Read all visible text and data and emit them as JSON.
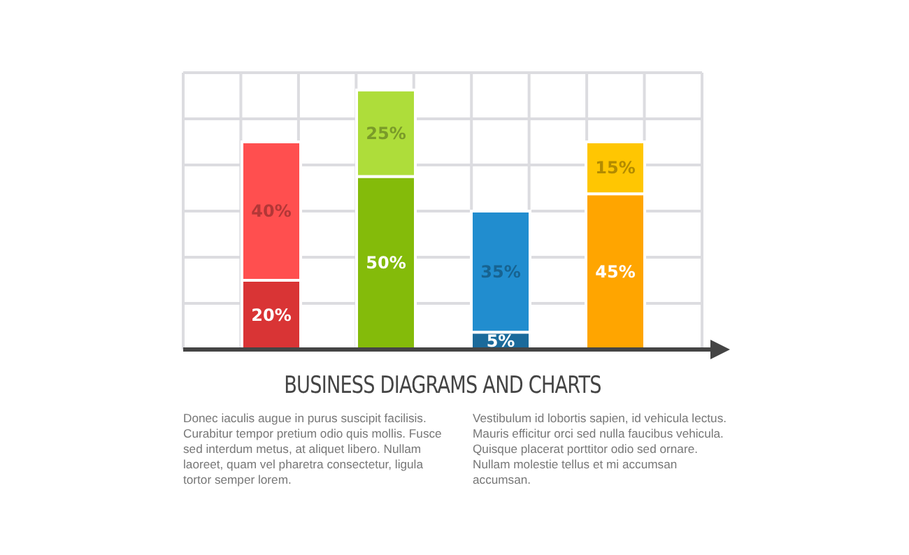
{
  "chart_data": {
    "type": "bar",
    "stacked": true,
    "title": "BUSINESS DIAGRAMS AND CHARTS",
    "annotations": [
      "Donec iaculis augue in purus suscipit facilisis. Curabitur tempor pretium odio quis mollis. Fusce sed interdum metus, at aliquet libero. Nullam laoreet, quam vel pharetra consectetur, ligula tortor semper lorem.",
      "Vestibulum id lobortis sapien, id vehicula lectus. Mauris efficitur orci sed nulla faucibus vehicula. Quisque placerat porttitor odio sed ornare. Nullam molestie tellus et mi accumsan accumsan."
    ],
    "categories": [
      null,
      null,
      null,
      null
    ],
    "series": [
      {
        "values": [
          20,
          50,
          5,
          45
        ],
        "colors": [
          "#d93435",
          "#84bb0a",
          "#1b6a9b",
          "#ffa500"
        ],
        "value_labels": [
          "20%",
          "50%",
          "5%",
          "45%"
        ]
      },
      {
        "values": [
          40,
          25,
          35,
          15
        ],
        "colors": [
          "#ff4f4f",
          "#aedd3a",
          "#218dcf",
          "#ffc602"
        ],
        "value_labels": [
          "40%",
          "25%",
          "35%",
          "15%"
        ]
      }
    ],
    "grid": true
  }
}
